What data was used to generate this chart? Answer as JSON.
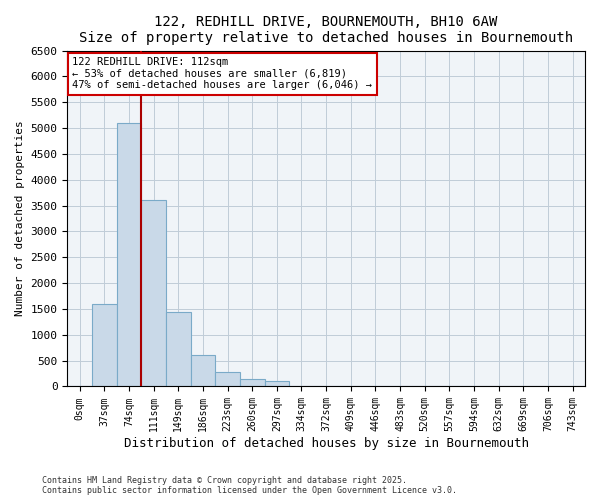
{
  "title": "122, REDHILL DRIVE, BOURNEMOUTH, BH10 6AW",
  "subtitle": "Size of property relative to detached houses in Bournemouth",
  "xlabel": "Distribution of detached houses by size in Bournemouth",
  "ylabel": "Number of detached properties",
  "bin_labels": [
    "0sqm",
    "37sqm",
    "74sqm",
    "111sqm",
    "149sqm",
    "186sqm",
    "223sqm",
    "260sqm",
    "297sqm",
    "334sqm",
    "372sqm",
    "409sqm",
    "446sqm",
    "483sqm",
    "520sqm",
    "557sqm",
    "594sqm",
    "632sqm",
    "669sqm",
    "706sqm",
    "743sqm"
  ],
  "bar_values": [
    0,
    1600,
    5100,
    3600,
    1450,
    600,
    280,
    145,
    100,
    0,
    0,
    0,
    0,
    0,
    0,
    0,
    0,
    0,
    0,
    0,
    0
  ],
  "bar_color": "#c9d9e8",
  "bar_edge_color": "#7aaac8",
  "vline_x": 3,
  "vline_color": "#aa0000",
  "ylim": [
    0,
    6500
  ],
  "yticks": [
    0,
    500,
    1000,
    1500,
    2000,
    2500,
    3000,
    3500,
    4000,
    4500,
    5000,
    5500,
    6000,
    6500
  ],
  "annotation_title": "122 REDHILL DRIVE: 112sqm",
  "annotation_line1": "← 53% of detached houses are smaller (6,819)",
  "annotation_line2": "47% of semi-detached houses are larger (6,046) →",
  "annotation_box_color": "#cc0000",
  "footer1": "Contains HM Land Registry data © Crown copyright and database right 2025.",
  "footer2": "Contains public sector information licensed under the Open Government Licence v3.0.",
  "bg_color": "#f0f4f8",
  "grid_color": "#c0ccd8"
}
